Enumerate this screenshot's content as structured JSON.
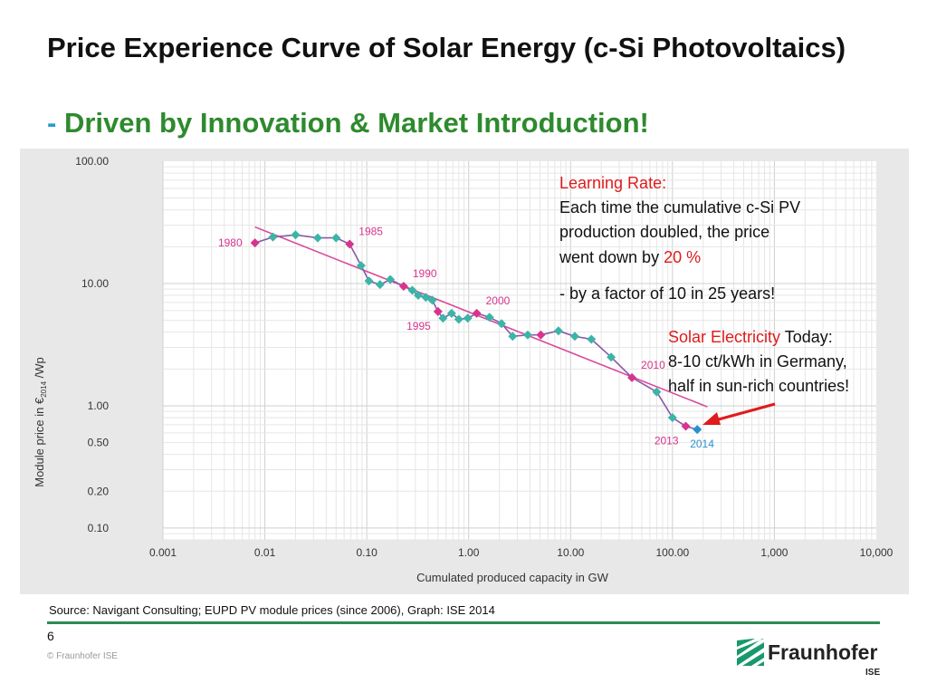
{
  "slide": {
    "title": "Price Experience Curve of Solar Energy (c-Si Photovoltaics)",
    "subtitle_dash": "-",
    "subtitle": "Driven by Innovation & Market Introduction!",
    "source": "Source: Navigant Consulting; EUPD PV module prices (since 2006), Graph: ISE 2014",
    "page_number": "6",
    "copyright": "© Fraunhofer ISE",
    "logo_name": "Fraunhofer",
    "logo_sub": "ISE",
    "logo_icon": "fraunhofer-stripes-icon"
  },
  "colors": {
    "accent_green": "#2e8a2e",
    "dash_blue": "#2a9ccf",
    "series_line": "#8a58a8",
    "teal_marker": "#3ab5a7",
    "pink_marker": "#d8348c",
    "blue_marker": "#2a8fd0",
    "trend_line": "#d84a9a",
    "callout_red": "#e01b1b",
    "panel_bg": "#e8e8e8"
  },
  "annotations": {
    "learning_rate_title": "Learning Rate:",
    "learning_rate_line1": "Each time the cumulative c-Si PV",
    "learning_rate_line2": "production doubled, the price",
    "learning_rate_line3_pre": "went down by ",
    "learning_rate_value": "20 %",
    "factor_note": "- by a factor of 10 in 25 years!",
    "solar_highlight": "Solar Electricity",
    "solar_today": " Today:",
    "solar_line2": "8-10 ct/kWh in Germany,",
    "solar_line3": "half in sun-rich countries!"
  },
  "chart_data": {
    "type": "scatter",
    "xlabel": "Cumulated produced capacity in GW",
    "ylabel_pre": "Module price in €",
    "ylabel_sub": "2014",
    "ylabel_post": " /Wp",
    "x_scale": "log",
    "y_scale": "log",
    "xlim": [
      0.001,
      10000
    ],
    "ylim": [
      0.08,
      100
    ],
    "x_ticks": [
      {
        "value": 0.001,
        "label": "0.001"
      },
      {
        "value": 0.01,
        "label": "0.01"
      },
      {
        "value": 0.1,
        "label": "0.10"
      },
      {
        "value": 1,
        "label": "1.00"
      },
      {
        "value": 10,
        "label": "10.00"
      },
      {
        "value": 100,
        "label": "100.00"
      },
      {
        "value": 1000,
        "label": "1,000"
      },
      {
        "value": 10000,
        "label": "10,000"
      }
    ],
    "y_ticks": [
      {
        "value": 100,
        "label": "100.00"
      },
      {
        "value": 10,
        "label": "10.00"
      },
      {
        "value": 1,
        "label": "1.00"
      },
      {
        "value": 0.5,
        "label": "0.50"
      },
      {
        "value": 0.2,
        "label": "0.20"
      },
      {
        "value": 0.1,
        "label": "0.10"
      }
    ],
    "grid": true,
    "series": [
      {
        "points": [
          {
            "x": 0.008,
            "y": 21.5,
            "m": "pink"
          },
          {
            "x": 0.012,
            "y": 24.0,
            "m": "teal"
          },
          {
            "x": 0.02,
            "y": 25.0,
            "m": "teal"
          },
          {
            "x": 0.033,
            "y": 23.6,
            "m": "teal"
          },
          {
            "x": 0.05,
            "y": 23.6,
            "m": "teal"
          },
          {
            "x": 0.068,
            "y": 21.0,
            "m": "pink"
          },
          {
            "x": 0.088,
            "y": 14.0,
            "m": "teal"
          },
          {
            "x": 0.105,
            "y": 10.5,
            "m": "teal"
          },
          {
            "x": 0.135,
            "y": 9.8,
            "m": "teal"
          },
          {
            "x": 0.17,
            "y": 10.8,
            "m": "teal"
          },
          {
            "x": 0.23,
            "y": 9.5,
            "m": "pink"
          },
          {
            "x": 0.28,
            "y": 8.8,
            "m": "teal"
          },
          {
            "x": 0.32,
            "y": 8.0,
            "m": "teal"
          },
          {
            "x": 0.38,
            "y": 7.7,
            "m": "teal"
          },
          {
            "x": 0.44,
            "y": 7.3,
            "m": "teal"
          },
          {
            "x": 0.5,
            "y": 5.9,
            "m": "pink"
          },
          {
            "x": 0.56,
            "y": 5.2,
            "m": "teal"
          },
          {
            "x": 0.68,
            "y": 5.7,
            "m": "teal"
          },
          {
            "x": 0.8,
            "y": 5.1,
            "m": "teal"
          },
          {
            "x": 0.98,
            "y": 5.2,
            "m": "teal"
          },
          {
            "x": 1.2,
            "y": 5.7,
            "m": "pink"
          },
          {
            "x": 1.6,
            "y": 5.3,
            "m": "teal"
          },
          {
            "x": 2.1,
            "y": 4.7,
            "m": "teal"
          },
          {
            "x": 2.7,
            "y": 3.7,
            "m": "teal"
          },
          {
            "x": 3.8,
            "y": 3.8,
            "m": "teal"
          },
          {
            "x": 5.1,
            "y": 3.8,
            "m": "pink"
          },
          {
            "x": 7.6,
            "y": 4.1,
            "m": "teal"
          },
          {
            "x": 11,
            "y": 3.7,
            "m": "teal"
          },
          {
            "x": 16,
            "y": 3.5,
            "m": "teal"
          },
          {
            "x": 25,
            "y": 2.5,
            "m": "teal"
          },
          {
            "x": 40,
            "y": 1.7,
            "m": "pink"
          },
          {
            "x": 70,
            "y": 1.3,
            "m": "teal"
          },
          {
            "x": 100,
            "y": 0.8,
            "m": "teal"
          },
          {
            "x": 135,
            "y": 0.68,
            "m": "pink"
          },
          {
            "x": 175,
            "y": 0.64,
            "m": "blue"
          }
        ]
      }
    ],
    "trend": {
      "points": [
        {
          "x": 0.008,
          "y": 29
        },
        {
          "x": 220,
          "y": 0.98
        }
      ]
    },
    "year_labels": [
      {
        "label": "1980",
        "x": 0.008,
        "y": 21.5,
        "pos": "left",
        "color": "pink"
      },
      {
        "label": "1985",
        "x": 0.068,
        "y": 21.0,
        "pos": "above-right",
        "color": "pink"
      },
      {
        "label": "1990",
        "x": 0.23,
        "y": 9.5,
        "pos": "above-right",
        "color": "pink"
      },
      {
        "label": "1995",
        "x": 0.5,
        "y": 5.9,
        "pos": "below-left",
        "color": "pink"
      },
      {
        "label": "2000",
        "x": 1.2,
        "y": 5.7,
        "pos": "above-right",
        "color": "pink"
      },
      {
        "label": "2010",
        "x": 40,
        "y": 1.7,
        "pos": "above-right",
        "color": "pink"
      },
      {
        "label": "2013",
        "x": 135,
        "y": 0.68,
        "pos": "below-left",
        "color": "pink"
      },
      {
        "label": "2014",
        "x": 175,
        "y": 0.64,
        "pos": "below",
        "color": "blue"
      }
    ]
  }
}
